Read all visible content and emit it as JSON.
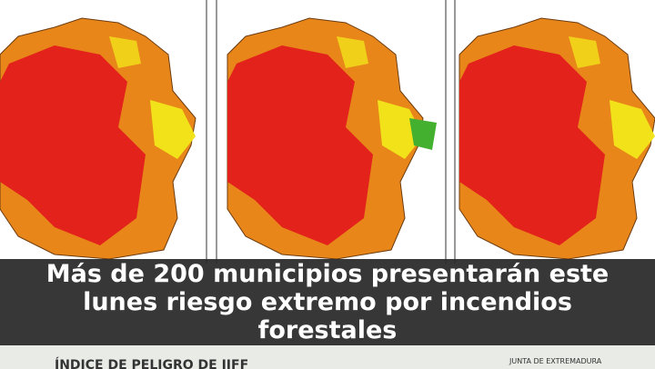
{
  "headline": "Más de 200 municipios presentarán este lunes riesgo extremo por incendios forestales",
  "legend_title": "ÍNDICE DE PELIGRO DE IIFF",
  "source": "JUNTA DE EXTREMADURA"
}
